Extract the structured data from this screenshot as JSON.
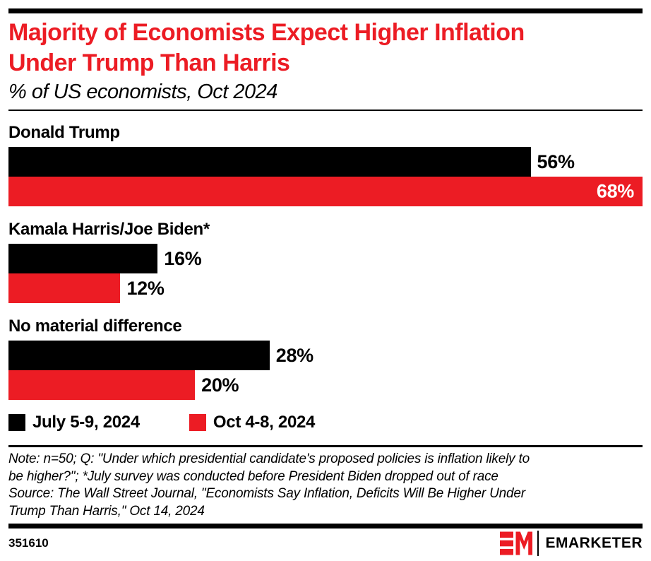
{
  "accent_red": "#EC1C24",
  "header": {
    "title": "Majority of Economists Expect Higher Inflation\nUnder Trump Than Harris",
    "subtitle": "% of US economists, Oct 2024"
  },
  "chart_data": {
    "type": "bar",
    "orientation": "horizontal",
    "unit": "%",
    "title": "Majority of Economists Expect Higher Inflation Under Trump Than Harris",
    "subtitle": "% of US economists, Oct 2024",
    "categories": [
      "Donald Trump",
      "Kamala Harris/Joe Biden*",
      "No material difference"
    ],
    "series": [
      {
        "name": "July 5-9, 2024",
        "color": "#000000",
        "values": [
          56,
          16,
          28
        ]
      },
      {
        "name": "Oct 4-8, 2024",
        "color": "#EC1C24",
        "values": [
          68,
          12,
          20
        ]
      }
    ],
    "value_labels": [
      [
        "56%",
        "68%"
      ],
      [
        "16%",
        "12%"
      ],
      [
        "28%",
        "20%"
      ]
    ],
    "xlim": [
      0,
      68
    ],
    "grid": false,
    "legend_position": "bottom"
  },
  "notes": {
    "note": "Note: n=50; Q: \"Under which presidential candidate's proposed policies is inflation likely to\nbe higher?\"; *July survey was conducted before President Biden dropped out of race",
    "source": "Source: The Wall Street Journal, \"Economists Say Inflation, Deficits Will Be Higher Under\nTrump Than Harris,\" Oct 14, 2024"
  },
  "footer": {
    "chart_id": "351610",
    "logo_mark": "EM",
    "logo_wordmark": "EMARKETER"
  }
}
